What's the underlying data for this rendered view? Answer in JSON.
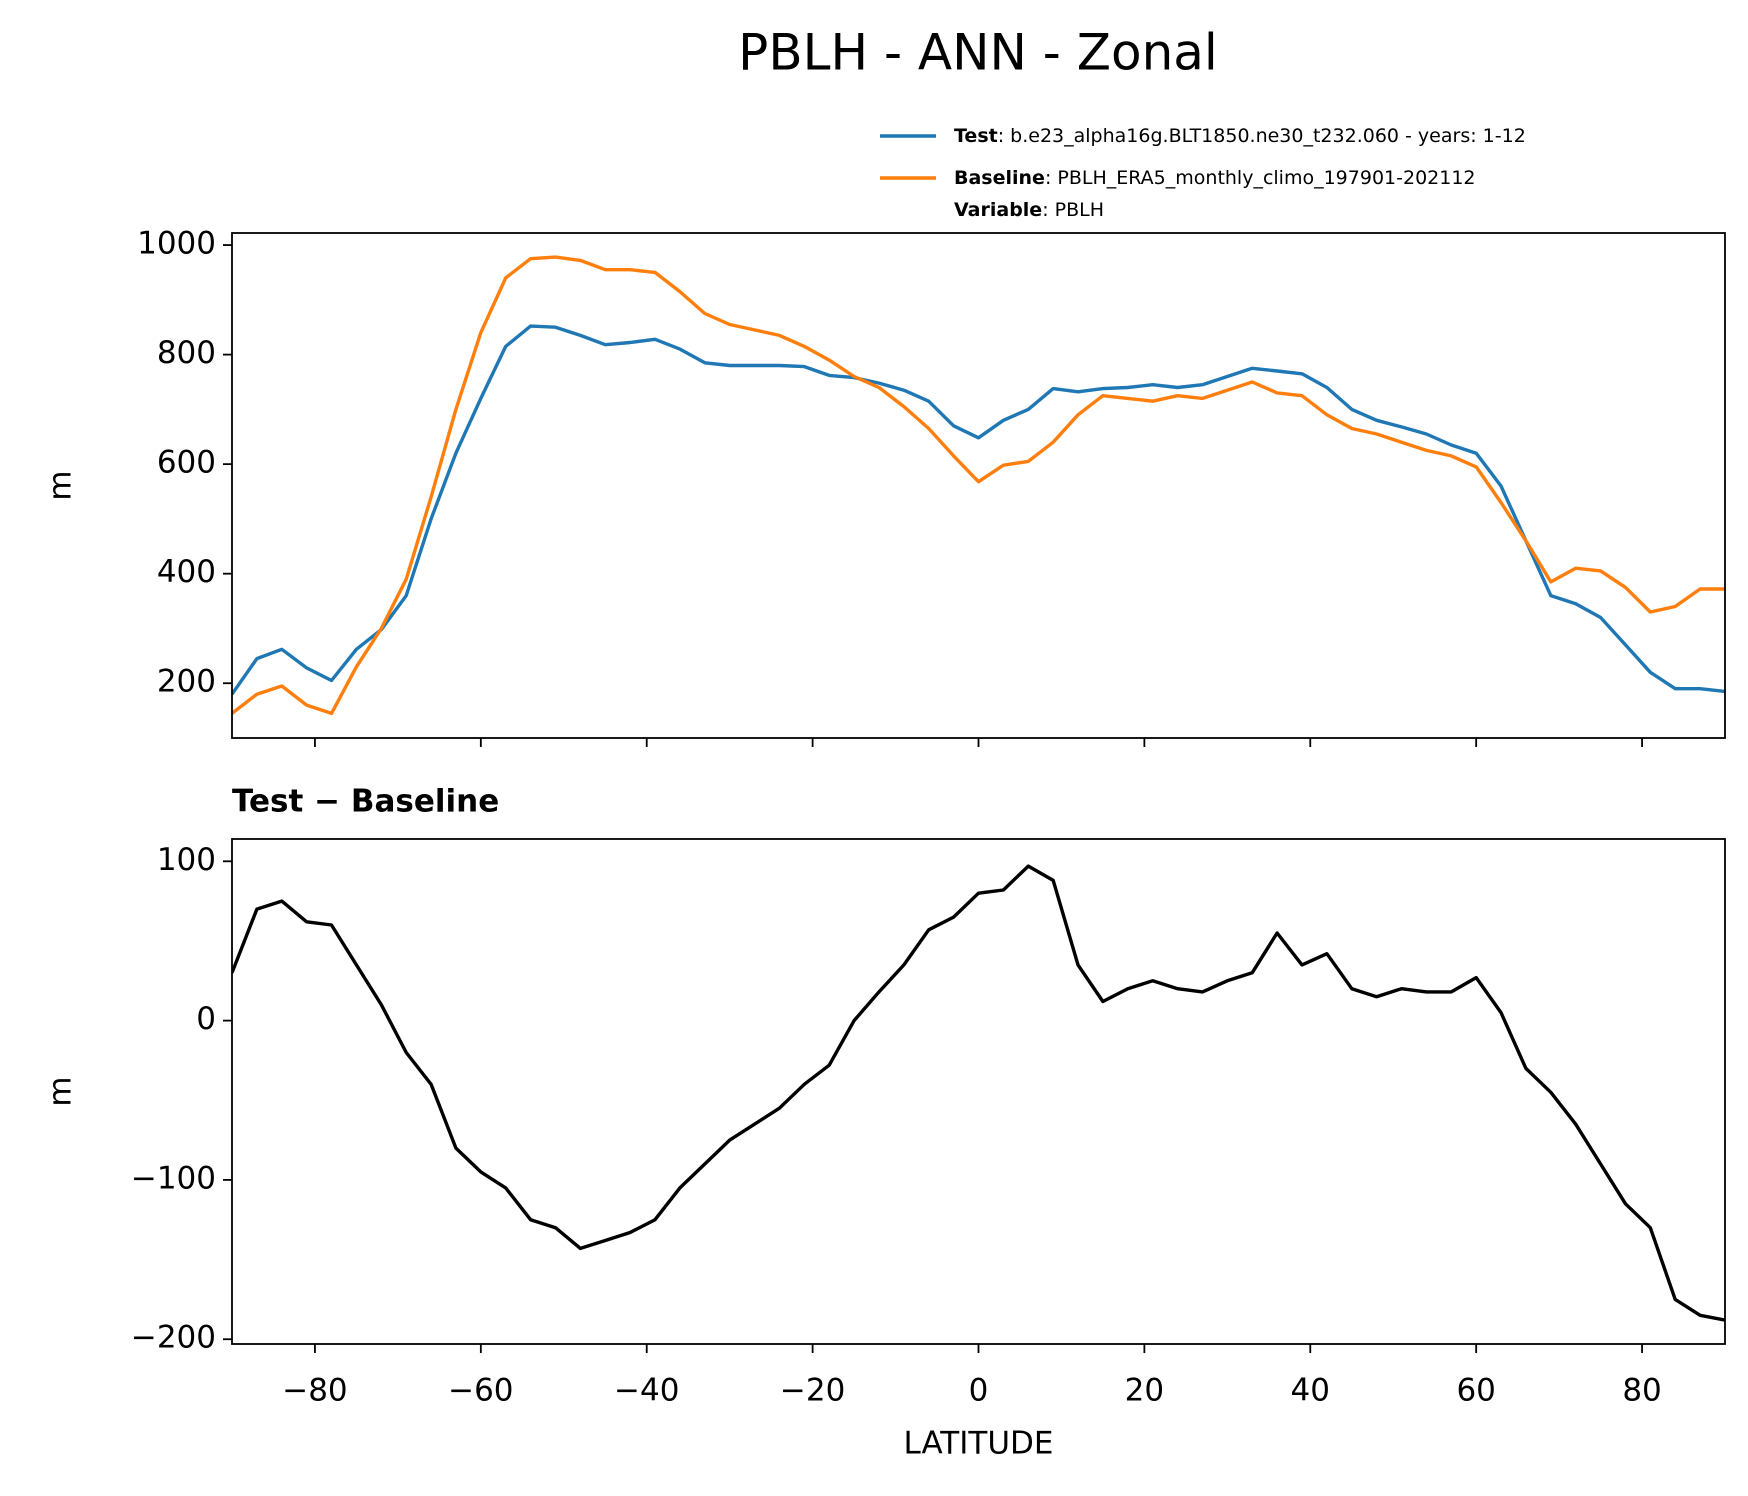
{
  "title": "PBLH - ANN - Zonal",
  "chart_data": [
    {
      "type": "line",
      "ylabel": "m",
      "x": [
        -90,
        -87,
        -84,
        -81,
        -78,
        -75,
        -72,
        -69,
        -66,
        -63,
        -60,
        -57,
        -54,
        -51,
        -48,
        -45,
        -42,
        -39,
        -36,
        -33,
        -30,
        -27,
        -24,
        -21,
        -18,
        -15,
        -12,
        -9,
        -6,
        -3,
        0,
        3,
        6,
        9,
        12,
        15,
        18,
        21,
        24,
        27,
        30,
        33,
        36,
        39,
        42,
        45,
        48,
        51,
        54,
        57,
        60,
        63,
        66,
        69,
        72,
        75,
        78,
        81,
        84,
        87,
        90
      ],
      "series": [
        {
          "name": "Test",
          "label": ": b.e23_alpha16g.BLT1850.ne30_t232.060 - years: 1-12",
          "color": "#1f77b4",
          "values": [
            180,
            245,
            262,
            228,
            205,
            262,
            298,
            360,
            500,
            620,
            720,
            815,
            852,
            850,
            835,
            818,
            822,
            828,
            810,
            785,
            780,
            780,
            780,
            778,
            762,
            758,
            748,
            735,
            715,
            670,
            648,
            680,
            700,
            738,
            732,
            738,
            740,
            745,
            740,
            745,
            760,
            775,
            770,
            765,
            740,
            700,
            680,
            668,
            655,
            635,
            620,
            560,
            460,
            360,
            345,
            320,
            270,
            220,
            190,
            190,
            185
          ]
        },
        {
          "name": "Baseline",
          "label": ": PBLH_ERA5_monthly_climo_197901-202112",
          "color": "#ff7f0e",
          "values": [
            145,
            180,
            195,
            160,
            145,
            230,
            300,
            390,
            540,
            700,
            840,
            940,
            975,
            978,
            972,
            955,
            955,
            950,
            915,
            875,
            855,
            845,
            835,
            815,
            790,
            760,
            740,
            705,
            665,
            615,
            568,
            598,
            605,
            640,
            690,
            725,
            720,
            715,
            725,
            720,
            735,
            750,
            730,
            725,
            690,
            665,
            655,
            640,
            625,
            615,
            595,
            530,
            460,
            385,
            410,
            405,
            375,
            330,
            340,
            372,
            372
          ]
        }
      ],
      "legend_extra": {
        "name": "Variable",
        "label": ": PBLH"
      },
      "xlim": [
        -90,
        90
      ],
      "xticks": [
        -80,
        -60,
        -40,
        -20,
        0,
        20,
        40,
        60,
        80
      ],
      "ylim": [
        100,
        1022
      ],
      "yticks": [
        200,
        400,
        600,
        800,
        1000
      ]
    },
    {
      "type": "line",
      "title": "Test − Baseline",
      "ylabel": "m",
      "xlabel": "LATITUDE",
      "x": [
        -90,
        -87,
        -84,
        -81,
        -78,
        -75,
        -72,
        -69,
        -66,
        -63,
        -60,
        -57,
        -54,
        -51,
        -48,
        -45,
        -42,
        -39,
        -36,
        -33,
        -30,
        -27,
        -24,
        -21,
        -18,
        -15,
        -12,
        -9,
        -6,
        -3,
        0,
        3,
        6,
        9,
        12,
        15,
        18,
        21,
        24,
        27,
        30,
        33,
        36,
        39,
        42,
        45,
        48,
        51,
        54,
        57,
        60,
        63,
        66,
        69,
        72,
        75,
        78,
        81,
        84,
        87,
        90
      ],
      "series": [
        {
          "color": "#000000",
          "values": [
            30,
            70,
            75,
            62,
            60,
            35,
            10,
            -20,
            -40,
            -80,
            -95,
            -105,
            -125,
            -130,
            -143,
            -138,
            -133,
            -125,
            -105,
            -90,
            -75,
            -65,
            -55,
            -40,
            -28,
            0,
            18,
            35,
            57,
            65,
            80,
            82,
            97,
            88,
            35,
            12,
            20,
            25,
            20,
            18,
            25,
            30,
            55,
            35,
            42,
            20,
            15,
            20,
            18,
            18,
            27,
            5,
            -30,
            -45,
            -65,
            -90,
            -115,
            -130,
            -175,
            -185,
            -188
          ]
        }
      ],
      "xlim": [
        -90,
        90
      ],
      "xticks": [
        {
          "value": -80,
          "label": "−80"
        },
        {
          "value": -60,
          "label": "−60"
        },
        {
          "value": -40,
          "label": "−40"
        },
        {
          "value": -20,
          "label": "−20"
        },
        0,
        20,
        40,
        60,
        80
      ],
      "ylim": [
        -203,
        114
      ],
      "yticks": [
        {
          "value": -200,
          "label": "−200"
        },
        {
          "value": -100,
          "label": "−100"
        },
        0,
        100
      ]
    }
  ]
}
